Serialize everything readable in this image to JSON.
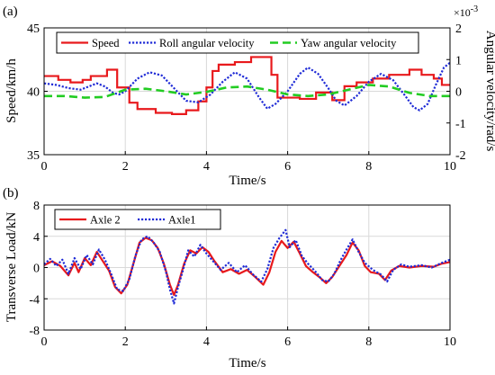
{
  "chart_data": [
    {
      "panel": "(a)",
      "type": "line",
      "xlabel": "Time/s",
      "ylabel": "Speed/km/h",
      "ylabel_right": "Angular velocity/rad/s",
      "right_exponent": "×10-3",
      "xlim": [
        0,
        10
      ],
      "ylim": [
        35,
        45
      ],
      "ylim_right": [
        -2,
        2
      ],
      "xticks": [
        "0",
        "2",
        "4",
        "6",
        "8",
        "10"
      ],
      "yticks": [
        "35",
        "40",
        "45"
      ],
      "yticks_right": [
        "-2",
        "-1",
        "0",
        "1",
        "2"
      ],
      "grid": true,
      "legend_position": "top",
      "series": [
        {
          "name": "Speed",
          "axis": "left",
          "color": "#e8191c",
          "style": "solid-step",
          "points": [
            [
              0,
              41.2
            ],
            [
              0.35,
              41.2
            ],
            [
              0.35,
              40.9
            ],
            [
              0.65,
              40.9
            ],
            [
              0.65,
              40.7
            ],
            [
              0.95,
              40.7
            ],
            [
              0.95,
              40.9
            ],
            [
              1.15,
              40.9
            ],
            [
              1.15,
              41.2
            ],
            [
              1.55,
              41.2
            ],
            [
              1.55,
              41.7
            ],
            [
              1.8,
              41.7
            ],
            [
              1.8,
              40.3
            ],
            [
              2.1,
              40.3
            ],
            [
              2.1,
              39.1
            ],
            [
              2.3,
              39.1
            ],
            [
              2.3,
              38.6
            ],
            [
              2.75,
              38.6
            ],
            [
              2.75,
              38.3
            ],
            [
              3.15,
              38.3
            ],
            [
              3.15,
              38.2
            ],
            [
              3.5,
              38.2
            ],
            [
              3.5,
              38.5
            ],
            [
              3.8,
              38.5
            ],
            [
              3.8,
              39.2
            ],
            [
              4.0,
              39.2
            ],
            [
              4.0,
              40.3
            ],
            [
              4.15,
              40.3
            ],
            [
              4.15,
              41.6
            ],
            [
              4.3,
              41.6
            ],
            [
              4.3,
              42.1
            ],
            [
              4.7,
              42.1
            ],
            [
              4.7,
              42.3
            ],
            [
              5.1,
              42.3
            ],
            [
              5.1,
              42.7
            ],
            [
              5.6,
              42.7
            ],
            [
              5.6,
              41.3
            ],
            [
              5.75,
              41.3
            ],
            [
              5.75,
              39.5
            ],
            [
              6.3,
              39.5
            ],
            [
              6.3,
              39.4
            ],
            [
              6.7,
              39.4
            ],
            [
              6.7,
              39.9
            ],
            [
              7.1,
              39.9
            ],
            [
              7.1,
              39.3
            ],
            [
              7.4,
              39.3
            ],
            [
              7.4,
              40.4
            ],
            [
              7.7,
              40.4
            ],
            [
              7.7,
              40.7
            ],
            [
              8.1,
              40.7
            ],
            [
              8.1,
              41.0
            ],
            [
              8.5,
              41.0
            ],
            [
              8.5,
              41.3
            ],
            [
              9.0,
              41.3
            ],
            [
              9.0,
              41.7
            ],
            [
              9.3,
              41.7
            ],
            [
              9.3,
              41.3
            ],
            [
              9.6,
              41.3
            ],
            [
              9.6,
              41.0
            ],
            [
              9.8,
              41.0
            ],
            [
              9.8,
              40.5
            ],
            [
              10,
              40.5
            ]
          ]
        },
        {
          "name": "Roll angular velocity",
          "axis": "right",
          "color": "#1f2bd6",
          "style": "dotted",
          "points": [
            [
              0,
              0.25
            ],
            [
              0.3,
              0.2
            ],
            [
              0.6,
              0.1
            ],
            [
              0.9,
              0.05
            ],
            [
              1.1,
              0.15
            ],
            [
              1.3,
              0.25
            ],
            [
              1.5,
              0.15
            ],
            [
              1.7,
              -0.05
            ],
            [
              1.85,
              -0.1
            ],
            [
              2.0,
              0.0
            ],
            [
              2.3,
              0.4
            ],
            [
              2.6,
              0.6
            ],
            [
              2.9,
              0.5
            ],
            [
              3.2,
              0.1
            ],
            [
              3.5,
              -0.3
            ],
            [
              3.8,
              -0.35
            ],
            [
              4.1,
              -0.1
            ],
            [
              4.4,
              0.3
            ],
            [
              4.7,
              0.6
            ],
            [
              5.0,
              0.4
            ],
            [
              5.3,
              -0.2
            ],
            [
              5.5,
              -0.55
            ],
            [
              5.7,
              -0.4
            ],
            [
              6.0,
              0.0
            ],
            [
              6.3,
              0.55
            ],
            [
              6.5,
              0.75
            ],
            [
              6.75,
              0.55
            ],
            [
              7.0,
              0.1
            ],
            [
              7.2,
              -0.3
            ],
            [
              7.4,
              -0.45
            ],
            [
              7.7,
              -0.15
            ],
            [
              8.0,
              0.3
            ],
            [
              8.3,
              0.55
            ],
            [
              8.6,
              0.35
            ],
            [
              8.9,
              -0.15
            ],
            [
              9.1,
              -0.5
            ],
            [
              9.25,
              -0.6
            ],
            [
              9.45,
              -0.4
            ],
            [
              9.65,
              0.2
            ],
            [
              9.85,
              0.75
            ],
            [
              10,
              0.9
            ]
          ]
        },
        {
          "name": "Yaw angular velocity",
          "axis": "right",
          "color": "#22cc22",
          "style": "dashed",
          "points": [
            [
              0,
              -0.15
            ],
            [
              0.5,
              -0.15
            ],
            [
              1.0,
              -0.2
            ],
            [
              1.5,
              -0.18
            ],
            [
              2.0,
              0.05
            ],
            [
              2.5,
              0.08
            ],
            [
              3.0,
              0.0
            ],
            [
              3.5,
              -0.1
            ],
            [
              4.0,
              -0.02
            ],
            [
              4.5,
              0.12
            ],
            [
              5.0,
              0.15
            ],
            [
              5.5,
              0.05
            ],
            [
              6.0,
              -0.1
            ],
            [
              6.5,
              -0.15
            ],
            [
              7.0,
              -0.1
            ],
            [
              7.5,
              0.05
            ],
            [
              8.0,
              0.2
            ],
            [
              8.5,
              0.15
            ],
            [
              9.0,
              -0.05
            ],
            [
              9.5,
              -0.15
            ],
            [
              10,
              -0.15
            ]
          ]
        }
      ]
    },
    {
      "panel": "(b)",
      "type": "line",
      "xlabel": "Time/s",
      "ylabel": "Transverse Load/kN",
      "xlim": [
        0,
        10
      ],
      "ylim": [
        -8,
        8
      ],
      "xticks": [
        "0",
        "2",
        "4",
        "6",
        "8",
        "10"
      ],
      "yticks": [
        "-8",
        "-4",
        "0",
        "4",
        "8"
      ],
      "grid": true,
      "legend_position": "top-left",
      "series": [
        {
          "name": "Axle 2",
          "color": "#e8191c",
          "style": "solid",
          "points": [
            [
              0,
              0.3
            ],
            [
              0.2,
              0.8
            ],
            [
              0.4,
              0.2
            ],
            [
              0.6,
              -1.0
            ],
            [
              0.75,
              0.6
            ],
            [
              0.85,
              -0.6
            ],
            [
              1.0,
              1.2
            ],
            [
              1.15,
              0.3
            ],
            [
              1.3,
              2.0
            ],
            [
              1.45,
              0.8
            ],
            [
              1.6,
              -0.4
            ],
            [
              1.75,
              -2.5
            ],
            [
              1.9,
              -3.3
            ],
            [
              2.05,
              -2.2
            ],
            [
              2.2,
              0.5
            ],
            [
              2.35,
              3.2
            ],
            [
              2.5,
              3.8
            ],
            [
              2.65,
              3.5
            ],
            [
              2.8,
              2.5
            ],
            [
              2.95,
              0.5
            ],
            [
              3.1,
              -2.2
            ],
            [
              3.2,
              -3.5
            ],
            [
              3.3,
              -2.2
            ],
            [
              3.45,
              0.5
            ],
            [
              3.6,
              2.2
            ],
            [
              3.75,
              1.8
            ],
            [
              3.9,
              2.6
            ],
            [
              4.05,
              2.0
            ],
            [
              4.2,
              0.8
            ],
            [
              4.4,
              -0.6
            ],
            [
              4.6,
              -0.2
            ],
            [
              4.8,
              -0.8
            ],
            [
              5.0,
              -0.3
            ],
            [
              5.2,
              -1.2
            ],
            [
              5.4,
              -2.2
            ],
            [
              5.55,
              -0.6
            ],
            [
              5.7,
              2.0
            ],
            [
              5.85,
              3.4
            ],
            [
              6.0,
              2.5
            ],
            [
              6.15,
              3.3
            ],
            [
              6.3,
              1.8
            ],
            [
              6.45,
              0.2
            ],
            [
              6.6,
              -0.5
            ],
            [
              6.8,
              -1.3
            ],
            [
              6.95,
              -2.0
            ],
            [
              7.1,
              -1.2
            ],
            [
              7.3,
              0.4
            ],
            [
              7.45,
              1.6
            ],
            [
              7.6,
              3.2
            ],
            [
              7.75,
              2.2
            ],
            [
              7.9,
              0.2
            ],
            [
              8.05,
              -0.6
            ],
            [
              8.25,
              -0.8
            ],
            [
              8.4,
              -1.6
            ],
            [
              8.55,
              -0.4
            ],
            [
              8.75,
              0.2
            ],
            [
              9.0,
              0.0
            ],
            [
              9.3,
              0.2
            ],
            [
              9.6,
              0.1
            ],
            [
              9.8,
              0.5
            ],
            [
              10,
              0.7
            ]
          ]
        },
        {
          "name": "Axle1",
          "color": "#1f2bd6",
          "style": "dotted",
          "points": [
            [
              0,
              0.4
            ],
            [
              0.15,
              1.1
            ],
            [
              0.3,
              0.2
            ],
            [
              0.45,
              1.0
            ],
            [
              0.6,
              -0.8
            ],
            [
              0.75,
              1.2
            ],
            [
              0.9,
              -0.2
            ],
            [
              1.05,
              1.6
            ],
            [
              1.2,
              0.4
            ],
            [
              1.35,
              2.3
            ],
            [
              1.5,
              1.0
            ],
            [
              1.65,
              -0.8
            ],
            [
              1.8,
              -2.8
            ],
            [
              1.95,
              -3.0
            ],
            [
              2.1,
              -1.5
            ],
            [
              2.25,
              1.5
            ],
            [
              2.4,
              3.6
            ],
            [
              2.55,
              4.0
            ],
            [
              2.7,
              3.2
            ],
            [
              2.85,
              2.0
            ],
            [
              3.0,
              -0.5
            ],
            [
              3.1,
              -2.8
            ],
            [
              3.2,
              -4.6
            ],
            [
              3.3,
              -2.5
            ],
            [
              3.45,
              0.2
            ],
            [
              3.55,
              2.2
            ],
            [
              3.7,
              1.4
            ],
            [
              3.85,
              2.9
            ],
            [
              4.0,
              1.8
            ],
            [
              4.15,
              0.9
            ],
            [
              4.35,
              -0.3
            ],
            [
              4.55,
              0.6
            ],
            [
              4.75,
              -0.6
            ],
            [
              4.95,
              0.3
            ],
            [
              5.15,
              -0.9
            ],
            [
              5.35,
              -1.8
            ],
            [
              5.5,
              -0.2
            ],
            [
              5.65,
              2.5
            ],
            [
              5.8,
              3.8
            ],
            [
              5.95,
              4.8
            ],
            [
              6.05,
              2.6
            ],
            [
              6.2,
              3.5
            ],
            [
              6.35,
              1.5
            ],
            [
              6.5,
              0.5
            ],
            [
              6.7,
              -0.6
            ],
            [
              6.85,
              -1.6
            ],
            [
              7.0,
              -1.8
            ],
            [
              7.15,
              -0.8
            ],
            [
              7.3,
              0.9
            ],
            [
              7.45,
              2.3
            ],
            [
              7.6,
              3.6
            ],
            [
              7.75,
              2.0
            ],
            [
              7.9,
              0.6
            ],
            [
              8.1,
              -0.3
            ],
            [
              8.3,
              -0.9
            ],
            [
              8.45,
              -1.8
            ],
            [
              8.6,
              -0.3
            ],
            [
              8.8,
              0.4
            ],
            [
              9.0,
              0.1
            ],
            [
              9.3,
              0.3
            ],
            [
              9.55,
              0.0
            ],
            [
              9.8,
              0.6
            ],
            [
              10,
              1.0
            ]
          ]
        }
      ]
    }
  ]
}
